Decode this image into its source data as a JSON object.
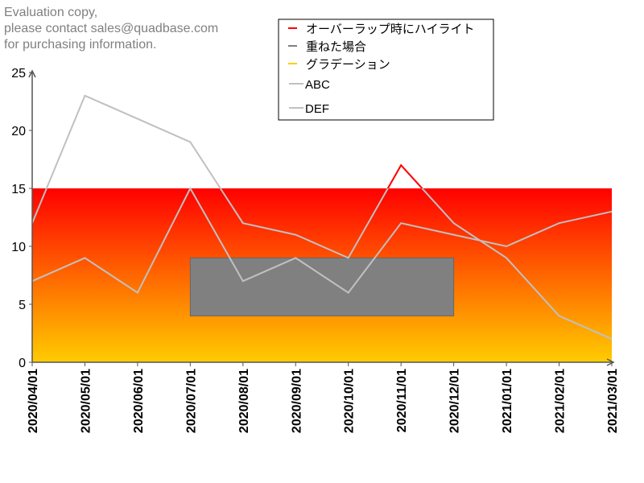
{
  "chart_data": {
    "type": "line",
    "title": "",
    "xlabel": "",
    "ylabel": "",
    "ylim": [
      0,
      25
    ],
    "yticks": [
      0,
      5,
      10,
      15,
      20,
      25
    ],
    "categories": [
      "2020/04/01",
      "2020/05/01",
      "2020/06/01",
      "2020/07/01",
      "2020/08/01",
      "2020/09/01",
      "2020/10/01",
      "2020/11/01",
      "2020/12/01",
      "2021/01/01",
      "2021/02/01",
      "2021/03/01"
    ],
    "series": [
      {
        "name": "ABC",
        "values": [
          12,
          23,
          21,
          19,
          12,
          11,
          9,
          17,
          12,
          9,
          4,
          2
        ],
        "color": "#c0c0c0"
      },
      {
        "name": "DEF",
        "values": [
          7,
          9,
          6,
          15,
          7,
          9,
          6,
          12,
          11,
          10,
          12,
          13
        ],
        "color": "#c0c0c0"
      }
    ],
    "gradient_band": {
      "label": "グラデーション",
      "from": 0,
      "to": 15,
      "color_top": "#ff0000",
      "color_bottom": "#ffcc00"
    },
    "overlap_box": {
      "label": "重ねた場合",
      "x_from": "2020/07/01",
      "x_to": "2020/12/01",
      "y_from": 4,
      "y_to": 9,
      "color": "#808080"
    },
    "highlight": {
      "label": "オーバーラップ時にハイライト",
      "series": "ABC",
      "from_index": 6,
      "to_index": 8,
      "above": 15,
      "color": "#ff0000"
    },
    "legend": [
      {
        "label": "オーバーラップ時にハイライト",
        "color": "#ff0000"
      },
      {
        "label": "重ねた場合",
        "color": "#808080"
      },
      {
        "label": "グラデーション",
        "color": "#ffcc00"
      },
      {
        "label": "ABC",
        "color": "#c0c0c0"
      },
      {
        "label": "DEF",
        "color": "#c0c0c0"
      }
    ],
    "legend_position": "top-right"
  },
  "watermark": [
    "Evaluation copy,",
    "please contact sales@quadbase.com",
    "for purchasing information."
  ]
}
